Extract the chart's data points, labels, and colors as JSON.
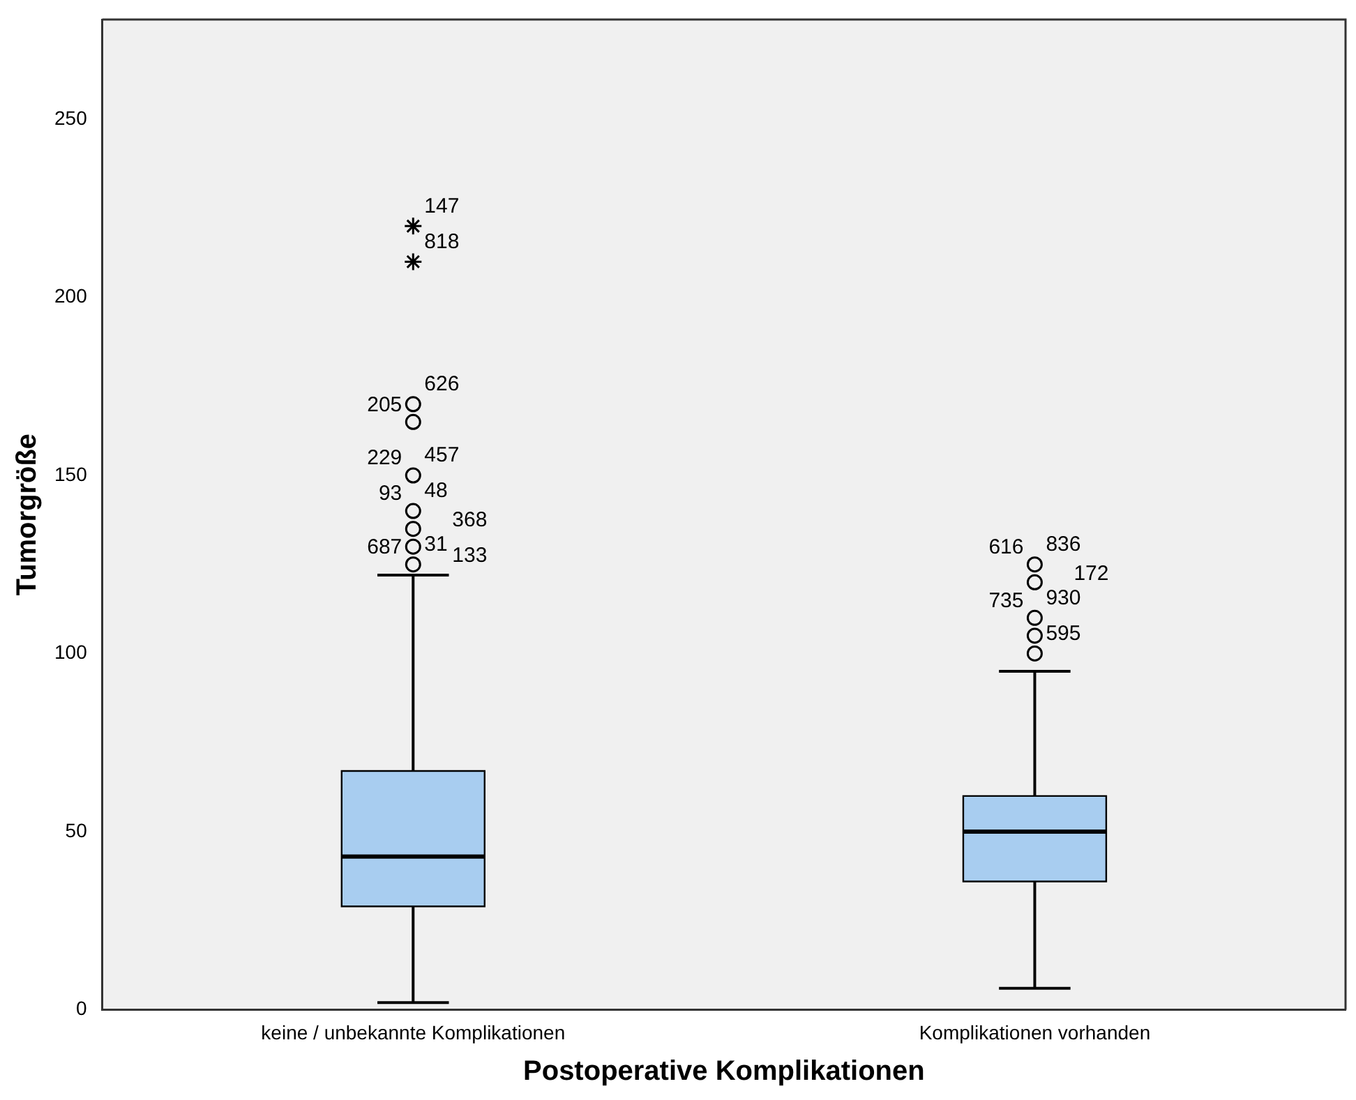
{
  "chart_data": {
    "type": "box",
    "xlabel": "Postoperative Komplikationen",
    "ylabel": "Tumorgröße",
    "categories": [
      "keine / unbekannte Komplikationen",
      "Komplikationen vorhanden"
    ],
    "color": "#a8cdf0",
    "ylim": [
      0,
      278
    ],
    "yticks": [
      0,
      50,
      100,
      150,
      200,
      250
    ],
    "boxes": [
      {
        "low": 2,
        "q1": 29,
        "median": 43,
        "q3": 67,
        "high": 122
      },
      {
        "low": 6,
        "q1": 36,
        "median": 50,
        "q3": 60,
        "high": 95
      }
    ],
    "series": [
      {
        "type": "scatter",
        "x": [
          "keine / unbekannte Komplikationen",
          "keine / unbekannte Komplikationen",
          "keine / unbekannte Komplikationen",
          "keine / unbekannte Komplikationen",
          "keine / unbekannte Komplikationen",
          "keine / unbekannte Komplikationen",
          "keine / unbekannte Komplikationen",
          "Komplikationen vorhanden",
          "Komplikationen vorhanden",
          "Komplikationen vorhanden",
          "Komplikationen vorhanden",
          "Komplikationen vorhanden"
        ],
        "values": [
          170,
          165,
          150,
          140,
          135,
          130,
          125,
          125,
          120,
          110,
          105,
          100
        ],
        "marker": "circle",
        "color": "#000000"
      },
      {
        "type": "scatter",
        "x": [
          "keine / unbekannte Komplikationen",
          "keine / unbekannte Komplikationen"
        ],
        "values": [
          220,
          210
        ],
        "marker": "cross",
        "color": "#000000"
      }
    ],
    "annotations": [
      {
        "text": "147",
        "x": "keine / unbekannte Komplikationen",
        "y": 220
      },
      {
        "text": "818",
        "x": "keine / unbekannte Komplikationen",
        "y": 210
      },
      {
        "text": "626",
        "x": "keine / unbekannte Komplikationen",
        "y": 170
      },
      {
        "text": "205",
        "x": "keine / unbekannte Komplikationen",
        "y": 165
      },
      {
        "text": "457",
        "x": "keine / unbekannte Komplikationen",
        "y": 150
      },
      {
        "text": "229",
        "x": "keine / unbekannte Komplikationen",
        "y": 150
      },
      {
        "text": "48",
        "x": "keine / unbekannte Komplikationen",
        "y": 140
      },
      {
        "text": "93",
        "x": "keine / unbekannte Komplikationen",
        "y": 140
      },
      {
        "text": "368",
        "x": "keine / unbekannte Komplikationen",
        "y": 135
      },
      {
        "text": "31",
        "x": "keine / unbekannte Komplikationen",
        "y": 125
      },
      {
        "text": "687",
        "x": "keine / unbekannte Komplikationen",
        "y": 125
      },
      {
        "text": "133",
        "x": "keine / unbekannte Komplikationen",
        "y": 125
      },
      {
        "text": "836",
        "x": "Komplikationen vorhanden",
        "y": 125
      },
      {
        "text": "616",
        "x": "Komplikationen vorhanden",
        "y": 125
      },
      {
        "text": "172",
        "x": "Komplikationen vorhanden",
        "y": 120
      },
      {
        "text": "930",
        "x": "Komplikationen vorhanden",
        "y": 110
      },
      {
        "text": "735",
        "x": "Komplikationen vorhanden",
        "y": 110
      },
      {
        "text": "595",
        "x": "Komplikationen vorhanden",
        "y": 100
      }
    ]
  }
}
